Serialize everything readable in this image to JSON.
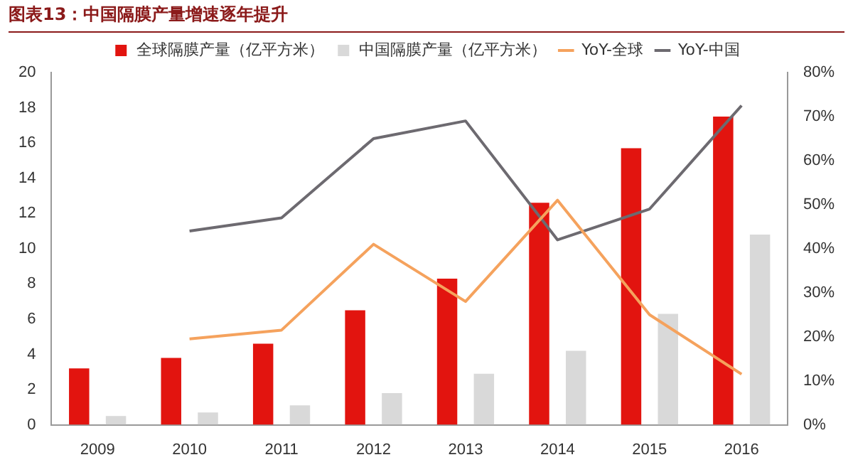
{
  "chart_data": {
    "type": "bar",
    "title": "图表13：中国隔膜产量增速逐年提升",
    "categories": [
      "2009",
      "2010",
      "2011",
      "2012",
      "2013",
      "2014",
      "2015",
      "2016"
    ],
    "series": [
      {
        "name": "全球隔膜产量（亿平方米）",
        "color": "#e2140f",
        "values": [
          3.2,
          3.8,
          4.6,
          6.5,
          8.3,
          12.6,
          15.7,
          17.5
        ]
      },
      {
        "name": "中国隔膜产量（亿平方米）",
        "color": "#d9d9d9",
        "values": [
          0.5,
          0.7,
          1.1,
          1.8,
          2.9,
          4.2,
          6.3,
          10.8
        ]
      },
      {
        "name": "YoY-全球",
        "type": "line",
        "axis": "y2",
        "color": "#f5a25d",
        "values": [
          null,
          19.5,
          21.5,
          41,
          28,
          51,
          25,
          11.5
        ]
      },
      {
        "name": "YoY-中国",
        "type": "line",
        "axis": "y2",
        "color": "#6d6a70",
        "values": [
          null,
          44,
          47,
          65,
          69,
          42,
          49,
          72.5
        ]
      }
    ],
    "ylim": [
      0,
      20
    ],
    "yticks": [
      0,
      2,
      4,
      6,
      8,
      10,
      12,
      14,
      16,
      18,
      20
    ],
    "y2lim": [
      0,
      80
    ],
    "y2ticks": [
      {
        "value": 0,
        "label": "0%"
      },
      {
        "value": 10,
        "label": "10%"
      },
      {
        "value": 20,
        "label": "20%"
      },
      {
        "value": 30,
        "label": "30%"
      },
      {
        "value": 40,
        "label": "40%"
      },
      {
        "value": 50,
        "label": "50%"
      },
      {
        "value": 60,
        "label": "60%"
      },
      {
        "value": 70,
        "label": "70%"
      },
      {
        "value": 80,
        "label": "80%"
      }
    ],
    "grid": false,
    "legend": "top",
    "marker": "none"
  }
}
